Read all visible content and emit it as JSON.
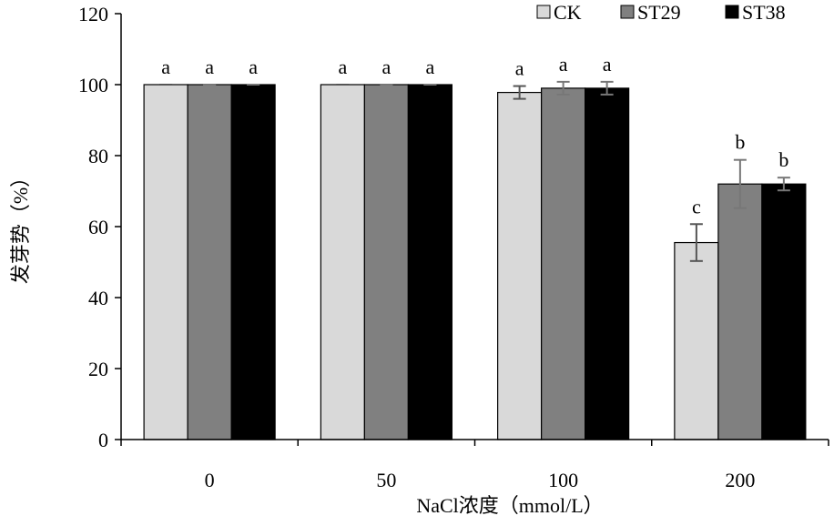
{
  "chart_data": {
    "type": "bar",
    "categories": [
      "0",
      "50",
      "100",
      "200"
    ],
    "series": [
      {
        "name": "CK",
        "color": "#d9d9d9",
        "values": [
          100,
          100,
          97.8,
          55.5
        ],
        "errors": [
          0,
          0,
          1.8,
          5.2
        ],
        "labels": [
          "a",
          "a",
          "a",
          "c"
        ]
      },
      {
        "name": "ST29",
        "color": "#808080",
        "values": [
          100,
          100,
          99.0,
          72.0
        ],
        "errors": [
          0,
          0,
          1.8,
          6.8
        ],
        "labels": [
          "a",
          "a",
          "a",
          "b"
        ]
      },
      {
        "name": "ST38",
        "color": "#000000",
        "values": [
          100,
          100,
          99.0,
          72.0
        ],
        "errors": [
          0,
          0,
          1.8,
          1.8
        ],
        "labels": [
          "a",
          "a",
          "a",
          "b"
        ]
      }
    ],
    "xlabel": "NaCl浓度（mmol/L）",
    "ylabel": "发芽势（%）",
    "ylim": [
      0,
      120
    ],
    "yticks": [
      0,
      20,
      40,
      60,
      80,
      100,
      120
    ],
    "legend_position": "top-right",
    "grid": false
  }
}
